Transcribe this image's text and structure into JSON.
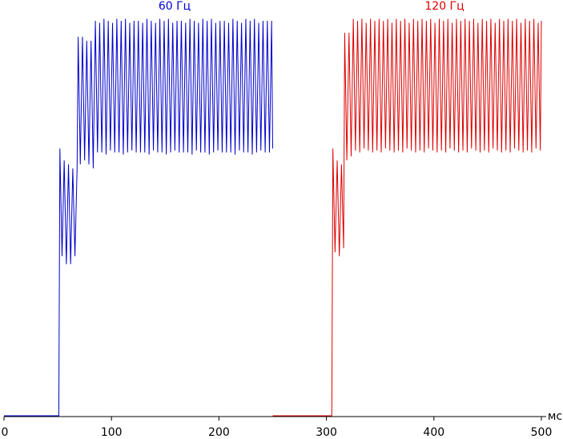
{
  "chart_data": {
    "type": "line",
    "xlabel": "мс",
    "xlim": [
      0,
      500
    ],
    "xticks": [
      0,
      100,
      200,
      300,
      400,
      500
    ],
    "ylim": [
      0,
      100
    ],
    "series": [
      {
        "name": "60 Гц",
        "color": "#0000cc",
        "x": [
          0,
          51,
          52,
          54,
          56,
          58,
          60,
          62,
          64,
          66,
          68,
          69,
          71,
          73,
          75,
          77,
          79,
          81,
          83,
          85,
          87,
          89,
          91,
          93,
          95,
          97,
          99,
          101,
          103,
          105,
          107,
          109,
          111,
          113,
          115,
          117,
          119,
          121,
          123,
          125,
          127,
          129,
          131,
          133,
          135,
          137,
          139,
          141,
          143,
          145,
          147,
          149,
          151,
          153,
          155,
          157,
          159,
          161,
          163,
          165,
          167,
          169,
          171,
          173,
          175,
          177,
          179,
          181,
          183,
          185,
          187,
          189,
          191,
          193,
          195,
          197,
          199,
          201,
          203,
          205,
          207,
          209,
          211,
          213,
          215,
          217,
          219,
          221,
          223,
          225,
          227,
          229,
          231,
          233,
          235,
          237,
          239,
          241,
          243,
          245,
          247,
          249,
          250
        ],
        "values": [
          0,
          0,
          67,
          40,
          64,
          38,
          63,
          38,
          62,
          40,
          62,
          95,
          63,
          95,
          64,
          94,
          63,
          94,
          62,
          99,
          66,
          98.5,
          66,
          99.5,
          65.5,
          99,
          66.5,
          98.5,
          66,
          99.5,
          66,
          99,
          65.5,
          99.5,
          66,
          98.5,
          66.5,
          99,
          66,
          99,
          66,
          98.5,
          66,
          99.5,
          65.5,
          99,
          66.5,
          98.5,
          66,
          99.5,
          66,
          99,
          65.5,
          99.5,
          66,
          98.5,
          66.5,
          99,
          66,
          99,
          66,
          98.5,
          66,
          99.5,
          65.5,
          99,
          66.5,
          98.5,
          66,
          99.5,
          66,
          99,
          65.5,
          99.5,
          66,
          98.5,
          66.5,
          99,
          66,
          99,
          66,
          98.5,
          66,
          99.5,
          65.5,
          99,
          66.5,
          98.5,
          66,
          99.5,
          66,
          99,
          65.5,
          99.5,
          66,
          98.5,
          66.5,
          99,
          66,
          99,
          66,
          99,
          67
        ]
      },
      {
        "name": "120 Гц",
        "color": "#dd0000",
        "x": [
          250,
          305,
          306,
          308,
          310,
          312,
          314,
          316,
          317,
          319,
          321,
          323,
          325,
          327,
          329,
          331,
          333,
          335,
          337,
          339,
          341,
          343,
          345,
          347,
          349,
          351,
          353,
          355,
          357,
          359,
          361,
          363,
          365,
          367,
          369,
          371,
          373,
          375,
          377,
          379,
          381,
          383,
          385,
          387,
          389,
          391,
          393,
          395,
          397,
          399,
          401,
          403,
          405,
          407,
          409,
          411,
          413,
          415,
          417,
          419,
          421,
          423,
          425,
          427,
          429,
          431,
          433,
          435,
          437,
          439,
          441,
          443,
          445,
          447,
          449,
          451,
          453,
          455,
          457,
          459,
          461,
          463,
          465,
          467,
          469,
          471,
          473,
          475,
          477,
          479,
          481,
          483,
          485,
          487,
          489,
          491,
          493,
          495,
          497,
          499,
          500
        ],
        "values": [
          0,
          0,
          67,
          41,
          64,
          40,
          63,
          42,
          96,
          64,
          96,
          65,
          99.5,
          66.5,
          99,
          66,
          99.5,
          67,
          98.5,
          66.5,
          99.5,
          66,
          99,
          66.5,
          99.5,
          66,
          99,
          67,
          99.5,
          66.5,
          98.5,
          66,
          99.5,
          66.5,
          99,
          66,
          99.5,
          67,
          98.5,
          66.5,
          99.5,
          66,
          99,
          66.5,
          99.5,
          66,
          99,
          67,
          99.5,
          66.5,
          98.5,
          66,
          99.5,
          66.5,
          99,
          66,
          99.5,
          67,
          98.5,
          66.5,
          99.5,
          66,
          99,
          66.5,
          99.5,
          66,
          99,
          67,
          99.5,
          66.5,
          98.5,
          66,
          99.5,
          66.5,
          99,
          66,
          99.5,
          67,
          98.5,
          66.5,
          99.5,
          66,
          99,
          66.5,
          99.5,
          66,
          99,
          67,
          99.5,
          66.5,
          98.5,
          66,
          99.5,
          66.5,
          99,
          66,
          99.5,
          67,
          98.5,
          66.5,
          99
        ]
      }
    ]
  }
}
